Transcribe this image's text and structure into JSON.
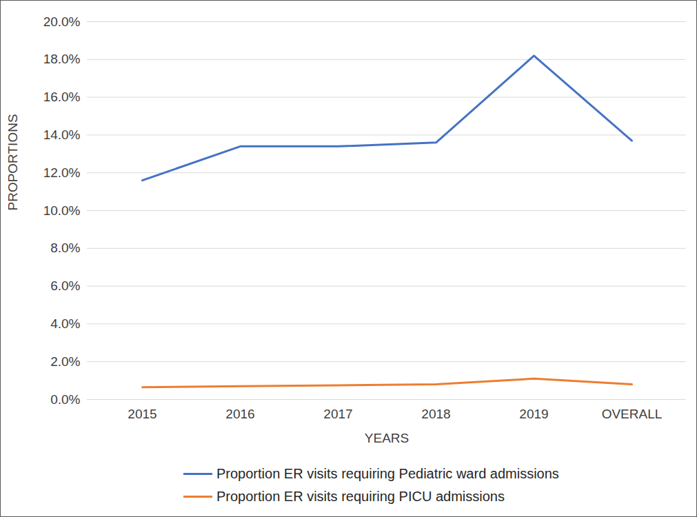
{
  "chart_data": {
    "type": "line",
    "x_label": "YEARS",
    "y_label": "PROPORTIONS",
    "categories": [
      "2015",
      "2016",
      "2017",
      "2018",
      "2019",
      "OVERALL"
    ],
    "series": [
      {
        "name": "Proportion ER visits requiring Pediatric ward admissions",
        "color": "#4472c4",
        "values": [
          11.6,
          13.4,
          13.4,
          13.6,
          18.2,
          13.7
        ]
      },
      {
        "name": "Proportion ER visits requiring PICU admissions",
        "color": "#ed7d31",
        "values": [
          0.65,
          0.7,
          0.75,
          0.8,
          1.1,
          0.8
        ]
      }
    ],
    "ylim": [
      0,
      20
    ],
    "yticks": [
      {
        "value": 0,
        "label": "0.0%"
      },
      {
        "value": 2,
        "label": "2.0%"
      },
      {
        "value": 4,
        "label": "4.0%"
      },
      {
        "value": 6,
        "label": "6.0%"
      },
      {
        "value": 8,
        "label": "8.0%"
      },
      {
        "value": 10,
        "label": "10.0%"
      },
      {
        "value": 12,
        "label": "12.0%"
      },
      {
        "value": 14,
        "label": "14.0%"
      },
      {
        "value": 16,
        "label": "16.0%"
      },
      {
        "value": 18,
        "label": "18.0%"
      },
      {
        "value": 20,
        "label": "20.0%"
      }
    ],
    "grid": true,
    "legend": "bottom"
  }
}
